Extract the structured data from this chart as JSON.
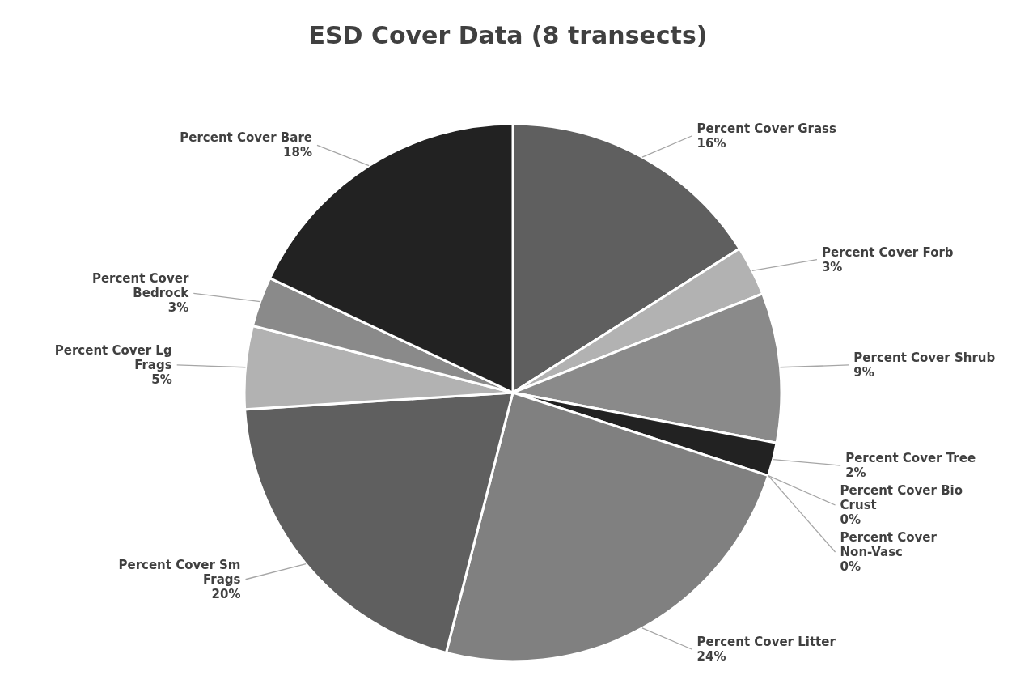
{
  "chart_data": {
    "type": "pie",
    "title": "ESD Cover Data (8 transects)",
    "categories": [
      "Percent Cover Grass",
      "Percent Cover Forb",
      "Percent Cover Shrub",
      "Percent Cover Tree",
      "Percent Cover Bio Crust",
      "Percent Cover Non-Vasc",
      "Percent Cover Litter",
      "Percent Cover Sm Frags",
      "Percent Cover Lg Frags",
      "Percent Cover Bedrock",
      "Percent Cover Bare"
    ],
    "values": [
      16,
      3,
      9,
      2,
      0,
      0,
      24,
      20,
      5,
      3,
      18
    ],
    "value_labels": [
      "16%",
      "3%",
      "9%",
      "2%",
      "0%",
      "0%",
      "24%",
      "20%",
      "5%",
      "3%",
      "18%"
    ],
    "colors": [
      "#5f5f5f",
      "#b2b2b2",
      "#8a8a8a",
      "#222222",
      "#5f5f5f",
      "#b2b2b2",
      "#808080",
      "#5f5f5f",
      "#b2b2b2",
      "#8a8a8a",
      "#222222"
    ],
    "legend": false
  }
}
